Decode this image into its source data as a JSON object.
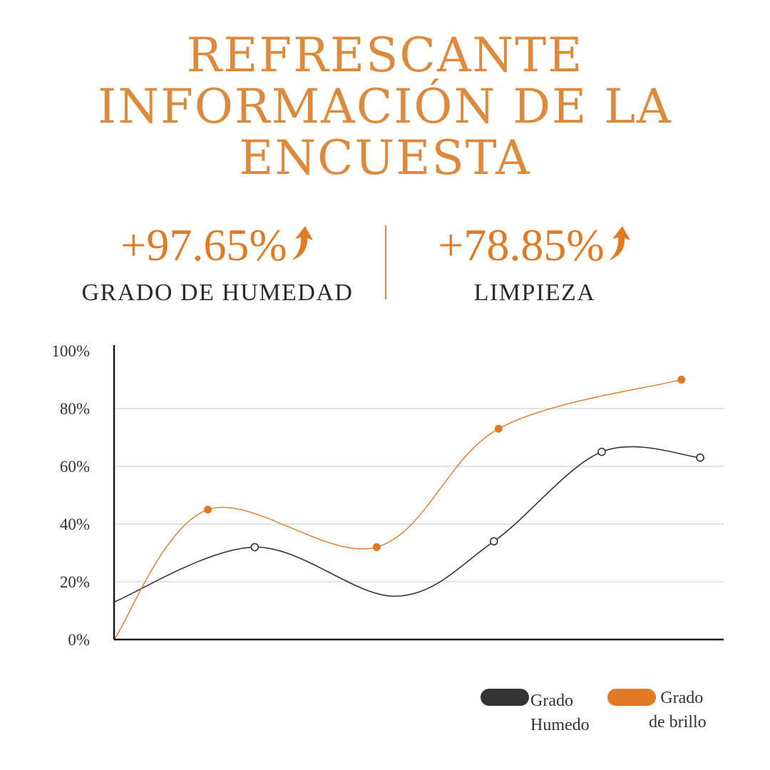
{
  "colors": {
    "accent": "#dd8a3c",
    "orange": "#e07a24",
    "dark": "#333333",
    "grid": "#d0d0d0"
  },
  "title": {
    "line1": "REFRESCANTE",
    "line2": "INFORMACIÓN DE LA",
    "line3": "ENCUESTA"
  },
  "stats": [
    {
      "value": "+97.65%",
      "label": "GRADO DE HUMEDAD",
      "icon": "up-arrow-icon"
    },
    {
      "value": "+78.85%",
      "label": "LIMPIEZA",
      "icon": "up-arrow-icon"
    }
  ],
  "chart_data": {
    "type": "line",
    "title": "",
    "xlabel": "",
    "ylabel": "",
    "x": [
      0,
      1,
      2,
      3,
      4,
      5,
      6
    ],
    "xlim": [
      0,
      6.5
    ],
    "ylim": [
      0,
      100
    ],
    "yticks": [
      "0%",
      "20%",
      "40%",
      "60%",
      "80%",
      "100%"
    ],
    "grid": true,
    "series": [
      {
        "name": "Grado Humedo",
        "color": "#333333",
        "marker": "hollow",
        "points": [
          [
            0,
            13
          ],
          [
            1.5,
            32
          ],
          [
            3,
            15
          ],
          [
            4.05,
            34
          ],
          [
            5.2,
            65
          ],
          [
            6.25,
            63
          ]
        ],
        "marker_points": [
          [
            1.5,
            32
          ],
          [
            4.05,
            34
          ],
          [
            5.2,
            65
          ],
          [
            6.25,
            63
          ]
        ]
      },
      {
        "name": "Grado de brillo",
        "color": "#e07a24",
        "marker": "filled",
        "points": [
          [
            0,
            0
          ],
          [
            1.0,
            45
          ],
          [
            2.8,
            32
          ],
          [
            4.1,
            73
          ],
          [
            6.05,
            90
          ]
        ],
        "marker_points": [
          [
            1.0,
            45
          ],
          [
            2.8,
            32
          ],
          [
            4.1,
            73
          ],
          [
            6.05,
            90
          ]
        ]
      }
    ],
    "legend": [
      {
        "line1": "Grado",
        "line2": "Humedo"
      },
      {
        "line1": "Grado",
        "line2": "de brillo"
      }
    ]
  }
}
